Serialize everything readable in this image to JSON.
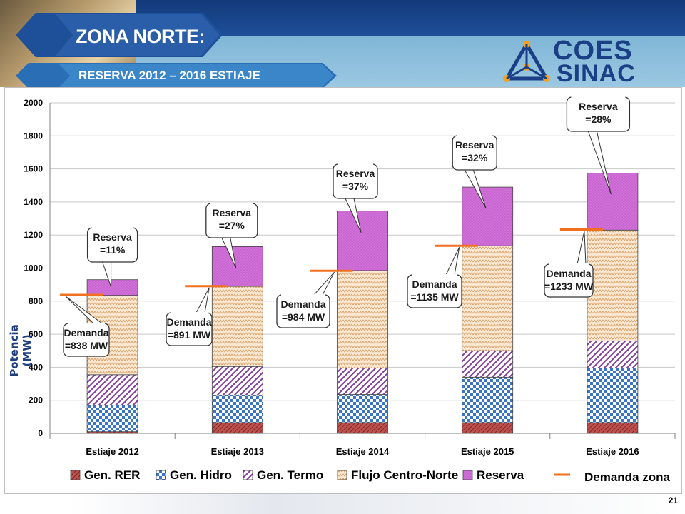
{
  "header": {
    "title": "ZONA NORTE:",
    "subtitle": "RESERVA 2012 – 2016 ESTIAJE",
    "logo_line1": "COES",
    "logo_line2": "SINAC"
  },
  "page_number": "21",
  "colors": {
    "navy": "#1e4f99",
    "light_blue": "#9cc8e2",
    "gen_rer": "#c0504d",
    "gen_hidro": "#4f81bd",
    "gen_termo": "#7f3f98",
    "flujo": "#e3b98a",
    "reserva": "#cc66cc",
    "demanda": "#f07020"
  },
  "chart_data": {
    "type": "bar",
    "stacked": true,
    "title": "",
    "xlabel": "",
    "ylabel": "Potencia (MW)",
    "ylim": [
      0,
      2000
    ],
    "yticks": [
      0,
      200,
      400,
      600,
      800,
      1000,
      1200,
      1400,
      1600,
      1800,
      2000
    ],
    "grid": true,
    "legend_position": "bottom",
    "categories": [
      "Estiaje 2012",
      "Estiaje 2013",
      "Estiaje 2014",
      "Estiaje 2015",
      "Estiaje 2016"
    ],
    "series": [
      {
        "name": "Gen. RER",
        "values": [
          10,
          65,
          65,
          65,
          65
        ]
      },
      {
        "name": "Gen. Hidro",
        "values": [
          160,
          165,
          170,
          275,
          330
        ]
      },
      {
        "name": "Gen. Termo",
        "values": [
          185,
          175,
          160,
          160,
          165
        ]
      },
      {
        "name": "Flujo Centro-Norte",
        "values": [
          480,
          485,
          590,
          635,
          670
        ]
      },
      {
        "name": "Reserva",
        "values": [
          95,
          240,
          360,
          355,
          345
        ]
      }
    ],
    "line_series": {
      "name": "Demanda zona",
      "values": [
        838,
        891,
        984,
        1135,
        1233
      ]
    },
    "reserva_callouts": [
      "Reserva\n=11%",
      "Reserva\n=27%",
      "Reserva\n=37%",
      "Reserva\n=32%",
      "Reserva\n=28%"
    ],
    "demanda_callouts": [
      "Demanda\n=838 MW",
      "Demanda\n=891 MW",
      "Demanda\n=984 MW",
      "Demanda\n=1135 MW",
      "Demanda\n=1233 MW"
    ]
  }
}
